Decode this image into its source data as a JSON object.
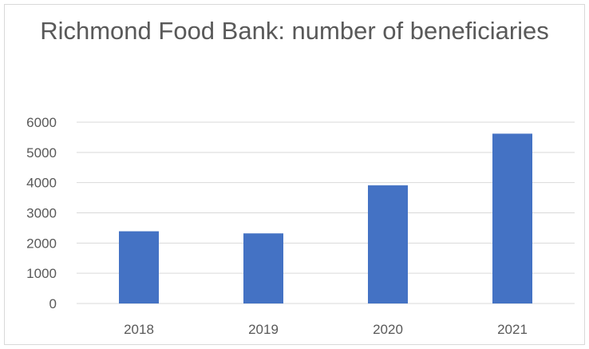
{
  "chart_data": {
    "type": "bar",
    "title": "Richmond Food Bank: number of beneficiaries",
    "categories": [
      "2018",
      "2019",
      "2020",
      "2021"
    ],
    "values": [
      2390,
      2320,
      3910,
      5620
    ],
    "ylim": [
      0,
      6000
    ],
    "yticks": [
      0,
      1000,
      2000,
      3000,
      4000,
      5000,
      6000
    ],
    "grid": true,
    "legend": "none",
    "colors": {
      "bar": "#4472c4",
      "grid": "#d9d9d9",
      "text": "#595959"
    }
  }
}
